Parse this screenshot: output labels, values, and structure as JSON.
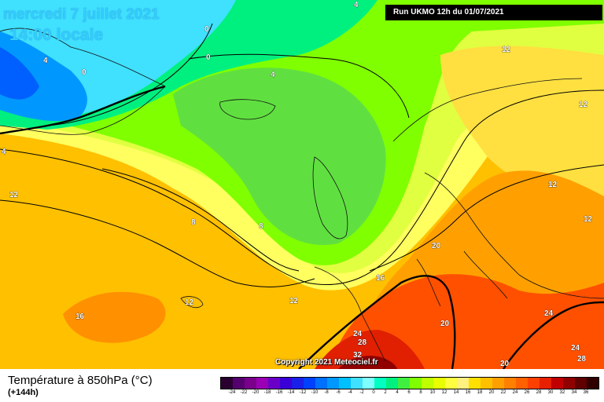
{
  "map": {
    "title": "mercredi 7 juillet 2021",
    "subtitle": "14:00 locale",
    "run_info": "Run UKMO 12h du 01/07/2021",
    "copyright": "Copyright 2021 Meteociel.fr"
  },
  "contour_labels": [
    {
      "id": "l-4-greenland",
      "text": "4"
    },
    {
      "id": "l-0-a",
      "text": "0"
    },
    {
      "id": "l-0-b",
      "text": "0"
    },
    {
      "id": "l-0-c",
      "text": "0"
    },
    {
      "id": "l-4-top",
      "text": "4"
    },
    {
      "id": "l-4-mid",
      "text": "4"
    },
    {
      "id": "l-4-left",
      "text": "4"
    },
    {
      "id": "l-12-left",
      "text": "12"
    },
    {
      "id": "l-8-a",
      "text": "8"
    },
    {
      "id": "l-8-b",
      "text": "8"
    },
    {
      "id": "l-12-mid",
      "text": "12"
    },
    {
      "id": "l-12-azores",
      "text": "12"
    },
    {
      "id": "l-16-sw",
      "text": "16"
    },
    {
      "id": "l-16-iberia",
      "text": "16"
    },
    {
      "id": "l-12-scand",
      "text": "12"
    },
    {
      "id": "l-12-ne",
      "text": "12"
    },
    {
      "id": "l-12-e1",
      "text": "12"
    },
    {
      "id": "l-12-e2",
      "text": "12"
    },
    {
      "id": "l-20-alps",
      "text": "20"
    },
    {
      "id": "l-20-med",
      "text": "20"
    },
    {
      "id": "l-24-af",
      "text": "24"
    },
    {
      "id": "l-28-af",
      "text": "28"
    },
    {
      "id": "l-32-af",
      "text": "32"
    },
    {
      "id": "l-20-bottom",
      "text": "20"
    },
    {
      "id": "l-24-e",
      "text": "24"
    },
    {
      "id": "l-24-se",
      "text": "24"
    },
    {
      "id": "l-28-se",
      "text": "28"
    }
  ],
  "legend": {
    "title": "Température à 850hPa (°C)",
    "subtitle": "(+144h)",
    "ticks": [
      "-24",
      "-22",
      "-20",
      "-18",
      "-16",
      "-14",
      "-12",
      "-10",
      "-8",
      "-6",
      "-4",
      "-2",
      "0",
      "2",
      "4",
      "6",
      "8",
      "10",
      "12",
      "14",
      "16",
      "18",
      "20",
      "22",
      "24",
      "26",
      "28",
      "30",
      "32",
      "34",
      "36"
    ],
    "colors": [
      "#2a0030",
      "#55006e",
      "#7a008c",
      "#9a00b4",
      "#6a00c8",
      "#3a00d8",
      "#1a20e8",
      "#0040ff",
      "#0070ff",
      "#0098ff",
      "#00c0ff",
      "#40e0ff",
      "#80ffff",
      "#00ffc0",
      "#00f080",
      "#40f040",
      "#80ff00",
      "#c0ff00",
      "#e8ff00",
      "#ffff40",
      "#fff080",
      "#ffe000",
      "#ffc000",
      "#ffa000",
      "#ff8000",
      "#ff6000",
      "#ff4000",
      "#e82000",
      "#c00000",
      "#900000",
      "#600000",
      "#300000"
    ]
  }
}
